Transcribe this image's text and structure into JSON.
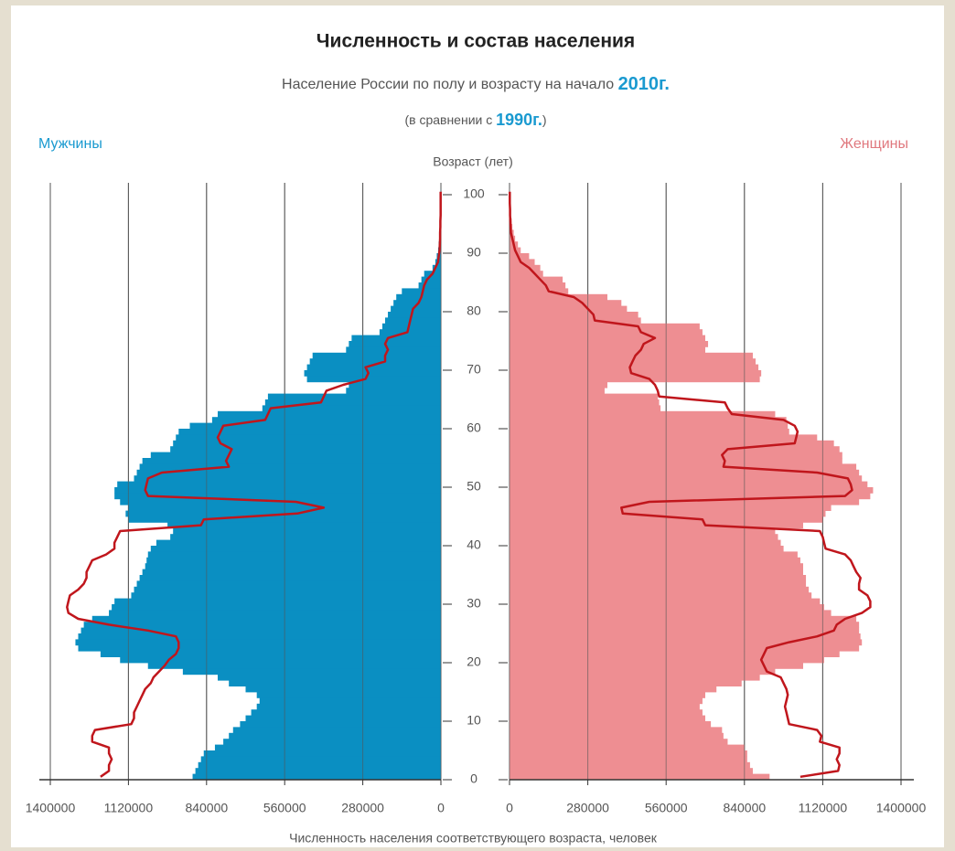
{
  "chart_data": {
    "type": "pyramid",
    "title": "Численность и состав населения",
    "subtitle": "Население России по полу и возрасту на начало",
    "subtitle_year": "2010г.",
    "comparison_prefix": "(в сравнении с",
    "comparison_year": "1990г.",
    "comparison_suffix": ")",
    "ylabel": "Возраст (лет)",
    "xlabel": "Численность населения соответствующего возраста,  человек",
    "ylim": [
      0,
      100
    ],
    "yticks": [
      0,
      10,
      20,
      30,
      40,
      50,
      60,
      70,
      80,
      90,
      100
    ],
    "xlim": [
      0,
      1400000
    ],
    "xticks": [
      0,
      280000,
      560000,
      840000,
      1120000,
      1400000
    ],
    "grid": true,
    "y": [
      0,
      1,
      2,
      3,
      4,
      5,
      6,
      7,
      8,
      9,
      10,
      11,
      12,
      13,
      14,
      15,
      16,
      17,
      18,
      19,
      20,
      21,
      22,
      23,
      24,
      25,
      26,
      27,
      28,
      29,
      30,
      31,
      32,
      33,
      34,
      35,
      36,
      37,
      38,
      39,
      40,
      41,
      42,
      43,
      44,
      45,
      46,
      47,
      48,
      49,
      50,
      51,
      52,
      53,
      54,
      55,
      56,
      57,
      58,
      59,
      60,
      61,
      62,
      63,
      64,
      65,
      66,
      67,
      68,
      69,
      70,
      71,
      72,
      73,
      74,
      75,
      76,
      77,
      78,
      79,
      80,
      81,
      82,
      83,
      84,
      85,
      86,
      87,
      88,
      89,
      90,
      91,
      92,
      93,
      94,
      95,
      96,
      97,
      98,
      99,
      100
    ],
    "left": {
      "label": "Мужчины",
      "label_color": "#1a9ad0",
      "series": [
        {
          "style": "fill",
          "color": "#0a8fc2",
          "values": [
            890000,
            880000,
            870000,
            860000,
            850000,
            810000,
            780000,
            760000,
            745000,
            720000,
            700000,
            680000,
            660000,
            650000,
            660000,
            700000,
            760000,
            800000,
            925000,
            1050000,
            1150000,
            1220000,
            1300000,
            1310000,
            1300000,
            1290000,
            1280000,
            1250000,
            1190000,
            1180000,
            1170000,
            1110000,
            1100000,
            1090000,
            1080000,
            1070000,
            1060000,
            1055000,
            1050000,
            1040000,
            1020000,
            970000,
            960000,
            980000,
            1120000,
            1130000,
            1120000,
            1150000,
            1170000,
            1170000,
            1160000,
            1100000,
            1090000,
            1080000,
            1070000,
            1040000,
            970000,
            960000,
            950000,
            940000,
            900000,
            820000,
            800000,
            640000,
            630000,
            620000,
            340000,
            330000,
            480000,
            490000,
            480000,
            470000,
            460000,
            340000,
            330000,
            320000,
            220000,
            210000,
            200000,
            190000,
            180000,
            170000,
            160000,
            140000,
            80000,
            70000,
            60000,
            30000,
            20000,
            15000,
            10000,
            8000,
            6000,
            5000,
            4000,
            3000,
            2000,
            2000,
            1000,
            1000,
            1000
          ]
        },
        {
          "style": "line",
          "color": "#c0161c",
          "values": [
            1220000,
            1190000,
            1190000,
            1180000,
            1190000,
            1190000,
            1250000,
            1250000,
            1240000,
            1110000,
            1100000,
            1100000,
            1090000,
            1080000,
            1070000,
            1060000,
            1040000,
            1030000,
            1010000,
            990000,
            975000,
            950000,
            940000,
            940000,
            950000,
            1050000,
            1190000,
            1300000,
            1335000,
            1340000,
            1335000,
            1330000,
            1300000,
            1280000,
            1270000,
            1270000,
            1260000,
            1250000,
            1200000,
            1170000,
            1170000,
            1160000,
            1150000,
            860000,
            850000,
            515000,
            420000,
            520000,
            1050000,
            1060000,
            1055000,
            1050000,
            1000000,
            760000,
            770000,
            760000,
            750000,
            790000,
            800000,
            790000,
            780000,
            630000,
            620000,
            610000,
            430000,
            420000,
            410000,
            350000,
            270000,
            260000,
            270000,
            200000,
            200000,
            190000,
            200000,
            190000,
            120000,
            115000,
            110000,
            105000,
            100000,
            80000,
            70000,
            65000,
            60000,
            50000,
            30000,
            20000,
            10000,
            8000,
            5000,
            4000,
            3000,
            3000,
            2000,
            2000,
            1000,
            1000,
            1000,
            1000,
            1000
          ]
        }
      ]
    },
    "right": {
      "label": "Женщины",
      "label_color": "#e0787e",
      "series": [
        {
          "style": "fill",
          "color": "#ee8e92",
          "values": [
            930000,
            870000,
            860000,
            850000,
            850000,
            840000,
            780000,
            765000,
            760000,
            720000,
            700000,
            690000,
            680000,
            690000,
            700000,
            740000,
            830000,
            895000,
            950000,
            1050000,
            1125000,
            1180000,
            1250000,
            1260000,
            1255000,
            1250000,
            1250000,
            1240000,
            1150000,
            1125000,
            1110000,
            1080000,
            1070000,
            1060000,
            1060000,
            1050000,
            1050000,
            1040000,
            1030000,
            980000,
            970000,
            960000,
            950000,
            1050000,
            1120000,
            1130000,
            1150000,
            1250000,
            1290000,
            1300000,
            1280000,
            1260000,
            1250000,
            1240000,
            1190000,
            1190000,
            1180000,
            1160000,
            1100000,
            1000000,
            995000,
            990000,
            950000,
            540000,
            535000,
            530000,
            340000,
            350000,
            895000,
            900000,
            890000,
            880000,
            870000,
            700000,
            710000,
            700000,
            690000,
            680000,
            470000,
            460000,
            420000,
            400000,
            350000,
            210000,
            200000,
            190000,
            120000,
            110000,
            90000,
            70000,
            40000,
            30000,
            20000,
            15000,
            10000,
            8000,
            5000,
            4000,
            3000,
            2000,
            1000
          ]
        },
        {
          "style": "line",
          "color": "#c0161c",
          "values": [
            1040000,
            1175000,
            1180000,
            1170000,
            1180000,
            1180000,
            1110000,
            1115000,
            1100000,
            1000000,
            995000,
            990000,
            985000,
            990000,
            995000,
            990000,
            980000,
            970000,
            920000,
            910000,
            900000,
            910000,
            920000,
            1000000,
            1100000,
            1160000,
            1170000,
            1200000,
            1260000,
            1290000,
            1290000,
            1280000,
            1250000,
            1250000,
            1255000,
            1240000,
            1230000,
            1220000,
            1200000,
            1130000,
            1125000,
            1120000,
            1110000,
            700000,
            690000,
            405000,
            400000,
            500000,
            1200000,
            1225000,
            1220000,
            1210000,
            1100000,
            765000,
            770000,
            760000,
            780000,
            1020000,
            1025000,
            1030000,
            1020000,
            980000,
            795000,
            780000,
            770000,
            535000,
            530000,
            520000,
            500000,
            435000,
            430000,
            440000,
            450000,
            470000,
            480000,
            520000,
            470000,
            460000,
            305000,
            300000,
            280000,
            260000,
            230000,
            140000,
            130000,
            110000,
            90000,
            70000,
            40000,
            30000,
            20000,
            15000,
            10000,
            5000,
            4000,
            3000,
            2000,
            2000,
            1000,
            1000,
            1000
          ]
        }
      ]
    }
  }
}
